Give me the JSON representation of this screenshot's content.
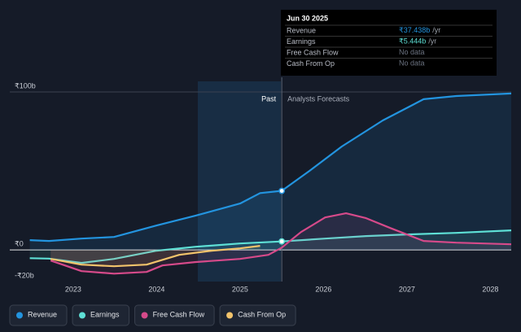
{
  "chart_data": {
    "type": "line",
    "xlim": [
      2022.24,
      2028.25
    ],
    "xticks": [
      2023,
      2024,
      2025,
      2026,
      2027,
      2028
    ],
    "ylim": [
      -20,
      100
    ],
    "yticks": [
      {
        "value": -20,
        "label": "-₹20b"
      },
      {
        "value": 0,
        "label": "₹0"
      },
      {
        "value": 100,
        "label": "₹100b"
      }
    ],
    "grid": true,
    "annotations": {
      "past": "Past",
      "forecast": "Analysts Forecasts"
    },
    "tooltip": {
      "date": "Jun 30 2025",
      "rows": [
        {
          "name": "Revenue",
          "value": "₹37.438b",
          "unit": "/yr"
        },
        {
          "name": "Earnings",
          "value": "₹5.444b",
          "unit": "/yr"
        },
        {
          "name": "Free Cash Flow",
          "value": "No data"
        },
        {
          "name": "Cash From Op",
          "value": "No data"
        }
      ]
    },
    "series": [
      {
        "name": "Revenue",
        "color": "#2394df",
        "x": [
          2022.48,
          2022.71,
          2023.1,
          2023.49,
          2024.0,
          2024.46,
          2025.0,
          2025.24,
          2025.5,
          2025.83,
          2026.22,
          2026.71,
          2027.2,
          2027.59,
          2028.25
        ],
        "values": [
          6.2,
          5.7,
          7.2,
          8.2,
          15.5,
          21.6,
          29.4,
          36,
          37.4,
          50,
          65.5,
          82,
          95.4,
          97.4,
          99
        ]
      },
      {
        "name": "Earnings",
        "color": "#5ee0d6",
        "x": [
          2022.48,
          2022.71,
          2023.1,
          2023.49,
          2024.0,
          2024.46,
          2025.0,
          2025.5,
          2026.02,
          2026.51,
          2027.0,
          2027.59,
          2028.25
        ],
        "values": [
          -5.2,
          -5.5,
          -8.2,
          -5.7,
          -0.5,
          2,
          4.1,
          5.4,
          7.2,
          8.8,
          9.8,
          10.8,
          12.4
        ]
      },
      {
        "name": "Free Cash Flow",
        "color": "#d64a8a",
        "x": [
          2022.73,
          2023.1,
          2023.49,
          2023.88,
          2024.07,
          2024.46,
          2025.0,
          2025.34,
          2025.5,
          2025.73,
          2026.02,
          2026.27,
          2026.51,
          2026.8,
          2027.2,
          2027.59,
          2028.25
        ],
        "values": [
          -6.7,
          -13.4,
          -15,
          -13.9,
          -9.8,
          -7.7,
          -5.7,
          -3.1,
          1.5,
          11.3,
          20.6,
          23.2,
          20.1,
          13.9,
          5.7,
          4.6,
          3.6
        ]
      },
      {
        "name": "Cash From Op",
        "color": "#f2c36b",
        "x": [
          2022.73,
          2023.1,
          2023.49,
          2023.88,
          2024.27,
          2024.66,
          2025.0,
          2025.24
        ],
        "values": [
          -5.7,
          -9.3,
          -10.3,
          -9.3,
          -3.1,
          -0.5,
          1,
          2.6
        ]
      }
    ]
  }
}
